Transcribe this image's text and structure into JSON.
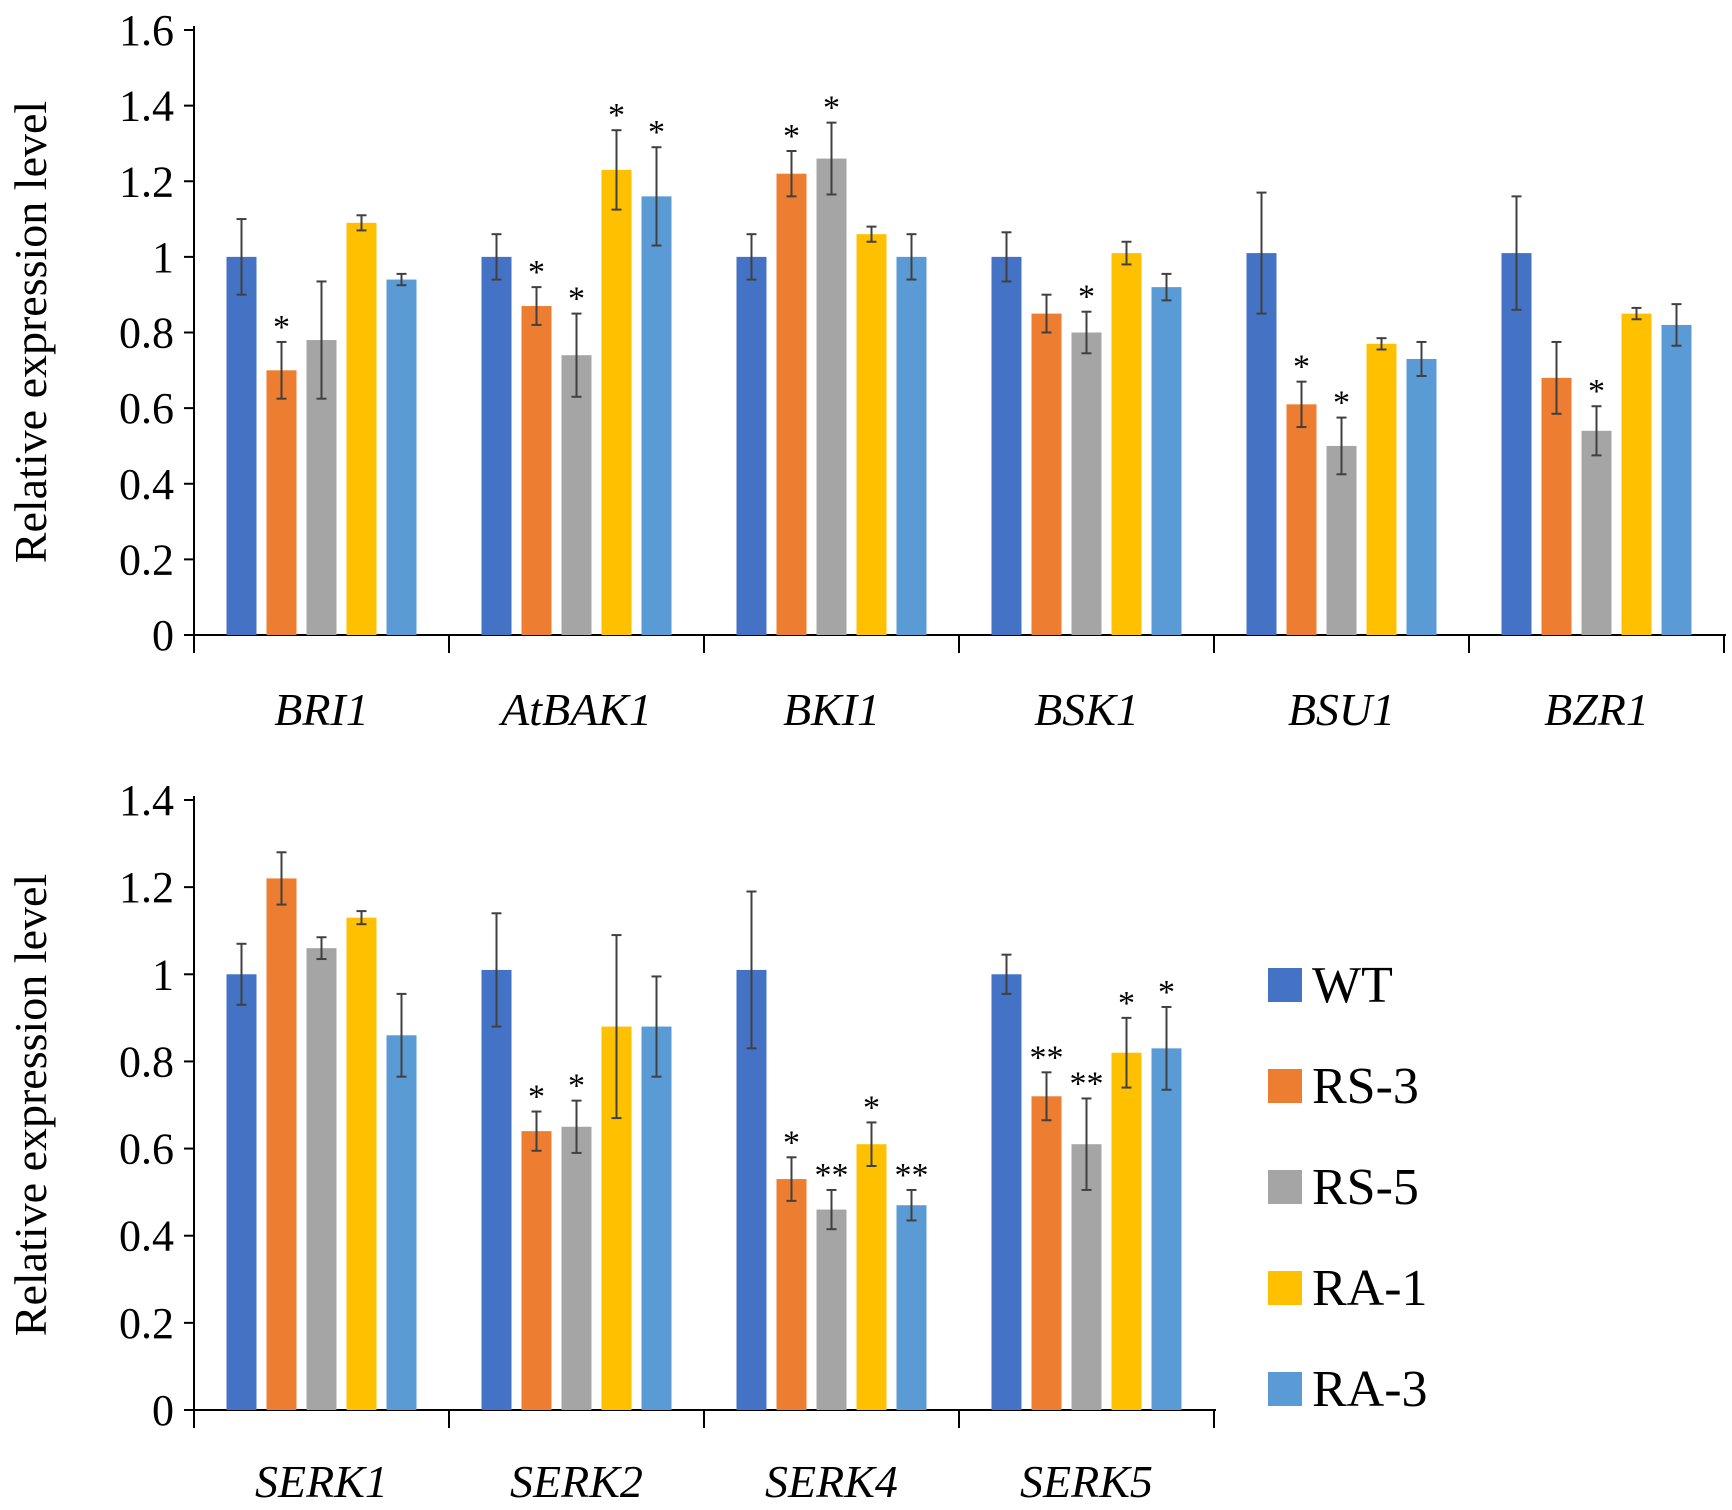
{
  "chart_data": [
    {
      "type": "bar",
      "ylabel": "Relative expression level",
      "ylim": [
        0,
        1.6
      ],
      "yticks": [
        "0",
        "0.2",
        "0.4",
        "0.6",
        "0.8",
        "1",
        "1.2",
        "1.4",
        "1.6"
      ],
      "categories": [
        "BRI1",
        "AtBAK1",
        "BKI1",
        "BSK1",
        "BSU1",
        "BZR1"
      ],
      "series": [
        {
          "name": "WT",
          "values": [
            1.0,
            1.0,
            1.0,
            1.0,
            1.01,
            1.01
          ],
          "errors": [
            0.1,
            0.06,
            0.06,
            0.065,
            0.16,
            0.15
          ],
          "sig": [
            "",
            "",
            "",
            "",
            "",
            ""
          ]
        },
        {
          "name": "RS-3",
          "values": [
            0.7,
            0.87,
            1.22,
            0.85,
            0.61,
            0.68
          ],
          "errors": [
            0.075,
            0.05,
            0.06,
            0.05,
            0.06,
            0.095
          ],
          "sig": [
            "*",
            "*",
            "*",
            "",
            "*",
            ""
          ]
        },
        {
          "name": "RS-5",
          "values": [
            0.78,
            0.74,
            1.26,
            0.8,
            0.5,
            0.54
          ],
          "errors": [
            0.155,
            0.11,
            0.095,
            0.055,
            0.075,
            0.065
          ],
          "sig": [
            "",
            "*",
            "*",
            "*",
            "*",
            "*"
          ]
        },
        {
          "name": "RA-1",
          "values": [
            1.09,
            1.23,
            1.06,
            1.01,
            0.77,
            0.85
          ],
          "errors": [
            0.02,
            0.105,
            0.02,
            0.03,
            0.015,
            0.015
          ],
          "sig": [
            "",
            "*",
            "",
            "",
            "",
            ""
          ]
        },
        {
          "name": "RA-3",
          "values": [
            0.94,
            1.16,
            1.0,
            0.92,
            0.73,
            0.82
          ],
          "errors": [
            0.015,
            0.13,
            0.06,
            0.035,
            0.045,
            0.055
          ],
          "sig": [
            "",
            "*",
            "",
            "",
            "",
            ""
          ]
        }
      ]
    },
    {
      "type": "bar",
      "ylabel": "Relative expression level",
      "ylim": [
        0,
        1.4
      ],
      "yticks": [
        "0",
        "0.2",
        "0.4",
        "0.6",
        "0.8",
        "1",
        "1.2",
        "1.4"
      ],
      "categories": [
        "SERK1",
        "SERK2",
        "SERK4",
        "SERK5"
      ],
      "series": [
        {
          "name": "WT",
          "values": [
            1.0,
            1.01,
            1.01,
            1.0
          ],
          "errors": [
            0.07,
            0.13,
            0.18,
            0.045
          ],
          "sig": [
            "",
            "",
            "",
            ""
          ]
        },
        {
          "name": "RS-3",
          "values": [
            1.22,
            0.64,
            0.53,
            0.72
          ],
          "errors": [
            0.06,
            0.045,
            0.05,
            0.055
          ],
          "sig": [
            "",
            "*",
            "*",
            "**"
          ]
        },
        {
          "name": "RS-5",
          "values": [
            1.06,
            0.65,
            0.46,
            0.61
          ],
          "errors": [
            0.025,
            0.06,
            0.045,
            0.105
          ],
          "sig": [
            "",
            "*",
            "**",
            "**"
          ]
        },
        {
          "name": "RA-1",
          "values": [
            1.13,
            0.88,
            0.61,
            0.82
          ],
          "errors": [
            0.015,
            0.21,
            0.05,
            0.08
          ],
          "sig": [
            "",
            "",
            "*",
            "*"
          ]
        },
        {
          "name": "RA-3",
          "values": [
            0.86,
            0.88,
            0.47,
            0.83
          ],
          "errors": [
            0.095,
            0.115,
            0.035,
            0.095
          ],
          "sig": [
            "",
            "",
            "**",
            "*"
          ]
        }
      ]
    }
  ],
  "legend": [
    {
      "label": "WT",
      "color": "#4472C4"
    },
    {
      "label": "RS-3",
      "color": "#ED7D31"
    },
    {
      "label": "RS-5",
      "color": "#A5A5A5"
    },
    {
      "label": "RA-1",
      "color": "#FFC000"
    },
    {
      "label": "RA-3",
      "color": "#5B9BD5"
    }
  ]
}
